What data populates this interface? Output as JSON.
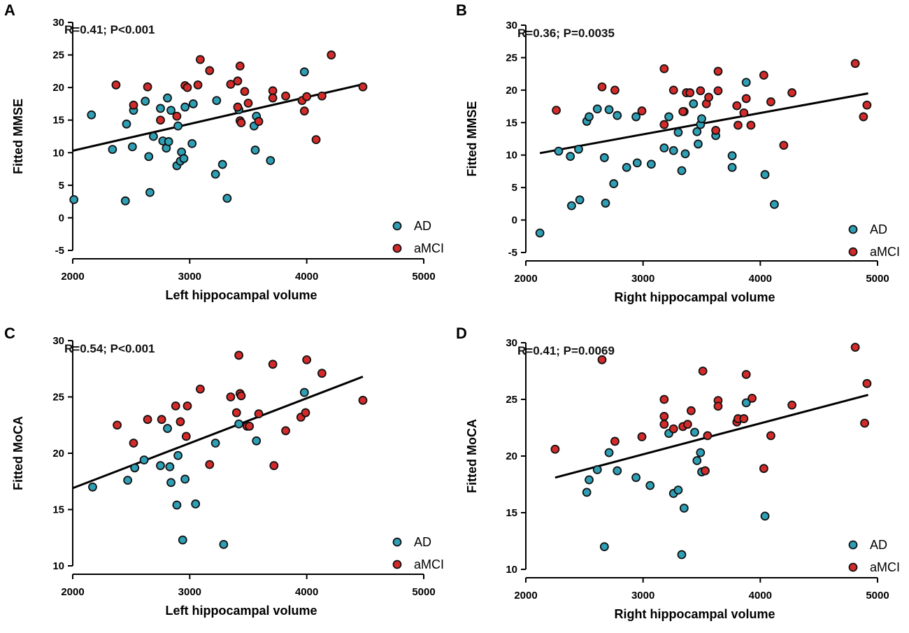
{
  "figure": {
    "colors": {
      "AD": "#2e9fb5",
      "aMCI": "#d42a2a",
      "marker_edge": "#111111",
      "line": "#000000"
    }
  },
  "chart_data": [
    {
      "panel": "A",
      "type": "scatter",
      "annotation": "R=0.41; P<0.001",
      "xlabel": "Left hippocampal volume",
      "ylabel": "Fitted MMSE",
      "xlim": [
        2000,
        5000
      ],
      "ylim": [
        -5,
        30
      ],
      "xticks": [
        2000,
        3000,
        4000,
        5000
      ],
      "yticks": [
        -5,
        0,
        5,
        10,
        15,
        20,
        25,
        30
      ],
      "legend": [
        "AD",
        "aMCI"
      ],
      "legend_position": "bottom-right",
      "fit_line": {
        "x": [
          2000,
          4480
        ],
        "y": [
          10.3,
          20.5
        ]
      },
      "series": [
        {
          "name": "AD",
          "points": [
            [
              2010,
              2.8
            ],
            [
              2160,
              15.8
            ],
            [
              2340,
              10.5
            ],
            [
              2450,
              2.6
            ],
            [
              2460,
              14.4
            ],
            [
              2510,
              10.9
            ],
            [
              2520,
              16.5
            ],
            [
              2620,
              17.9
            ],
            [
              2650,
              9.4
            ],
            [
              2660,
              3.9
            ],
            [
              2690,
              12.5
            ],
            [
              2750,
              16.8
            ],
            [
              2770,
              11.8
            ],
            [
              2800,
              10.7
            ],
            [
              2810,
              18.4
            ],
            [
              2820,
              11.7
            ],
            [
              2840,
              16.5
            ],
            [
              2890,
              8.0
            ],
            [
              2900,
              14.1
            ],
            [
              2920,
              8.7
            ],
            [
              2930,
              10.1
            ],
            [
              2950,
              9.1
            ],
            [
              2960,
              17.0
            ],
            [
              3020,
              11.4
            ],
            [
              3030,
              17.5
            ],
            [
              3220,
              6.7
            ],
            [
              3230,
              18.0
            ],
            [
              3280,
              8.2
            ],
            [
              3320,
              3.0
            ],
            [
              3420,
              16.6
            ],
            [
              3550,
              14.1
            ],
            [
              3560,
              10.4
            ],
            [
              3570,
              15.6
            ],
            [
              3690,
              8.8
            ],
            [
              3980,
              22.4
            ]
          ]
        },
        {
          "name": "aMCI",
          "points": [
            [
              2370,
              20.4
            ],
            [
              2520,
              17.3
            ],
            [
              2640,
              20.1
            ],
            [
              2750,
              15.0
            ],
            [
              2890,
              15.6
            ],
            [
              2960,
              20.3
            ],
            [
              2980,
              20.0
            ],
            [
              3070,
              20.4
            ],
            [
              3090,
              24.3
            ],
            [
              3170,
              22.6
            ],
            [
              3350,
              20.5
            ],
            [
              3410,
              21.0
            ],
            [
              3430,
              23.3
            ],
            [
              3410,
              17.0
            ],
            [
              3430,
              14.9
            ],
            [
              3440,
              14.6
            ],
            [
              3470,
              19.4
            ],
            [
              3500,
              17.6
            ],
            [
              3590,
              14.8
            ],
            [
              3710,
              19.5
            ],
            [
              3710,
              18.4
            ],
            [
              3820,
              18.7
            ],
            [
              3960,
              18.0
            ],
            [
              3980,
              16.4
            ],
            [
              4000,
              18.6
            ],
            [
              4080,
              12.0
            ],
            [
              4130,
              18.7
            ],
            [
              4210,
              25.0
            ],
            [
              4480,
              20.1
            ]
          ]
        }
      ]
    },
    {
      "panel": "B",
      "type": "scatter",
      "annotation": "R=0.36; P=0.0035",
      "xlabel": "Right hippocampal volume",
      "ylabel": "Fitted MMSE",
      "xlim": [
        2000,
        5000
      ],
      "ylim": [
        -5,
        30
      ],
      "xticks": [
        2000,
        3000,
        4000,
        5000
      ],
      "yticks": [
        -5,
        0,
        5,
        10,
        15,
        20,
        25,
        30
      ],
      "legend": [
        "AD",
        "aMCI"
      ],
      "legend_position": "bottom-right",
      "fit_line": {
        "x": [
          2120,
          4920
        ],
        "y": [
          10.3,
          19.5
        ]
      },
      "series": [
        {
          "name": "AD",
          "points": [
            [
              2120,
              -2.0
            ],
            [
              2280,
              10.6
            ],
            [
              2380,
              9.8
            ],
            [
              2390,
              2.2
            ],
            [
              2450,
              10.9
            ],
            [
              2460,
              3.1
            ],
            [
              2520,
              15.2
            ],
            [
              2540,
              15.9
            ],
            [
              2610,
              17.1
            ],
            [
              2670,
              9.6
            ],
            [
              2680,
              2.6
            ],
            [
              2710,
              17.0
            ],
            [
              2750,
              5.6
            ],
            [
              2780,
              16.1
            ],
            [
              2860,
              8.1
            ],
            [
              2940,
              15.9
            ],
            [
              2950,
              8.8
            ],
            [
              3070,
              8.6
            ],
            [
              3180,
              11.1
            ],
            [
              3220,
              15.9
            ],
            [
              3260,
              10.7
            ],
            [
              3300,
              13.5
            ],
            [
              3330,
              7.6
            ],
            [
              3350,
              16.7
            ],
            [
              3360,
              10.2
            ],
            [
              3430,
              17.9
            ],
            [
              3460,
              13.6
            ],
            [
              3470,
              11.7
            ],
            [
              3490,
              14.7
            ],
            [
              3500,
              15.6
            ],
            [
              3620,
              13.0
            ],
            [
              3760,
              9.9
            ],
            [
              3760,
              8.1
            ],
            [
              3880,
              21.2
            ],
            [
              4040,
              7.0
            ],
            [
              4120,
              2.4
            ]
          ]
        },
        {
          "name": "aMCI",
          "points": [
            [
              2260,
              16.9
            ],
            [
              2650,
              20.5
            ],
            [
              2760,
              20.0
            ],
            [
              2990,
              16.8
            ],
            [
              3180,
              23.3
            ],
            [
              3180,
              14.7
            ],
            [
              3260,
              20.0
            ],
            [
              3340,
              16.7
            ],
            [
              3370,
              19.6
            ],
            [
              3400,
              19.6
            ],
            [
              3490,
              19.9
            ],
            [
              3540,
              17.9
            ],
            [
              3560,
              18.9
            ],
            [
              3620,
              13.8
            ],
            [
              3640,
              19.9
            ],
            [
              3640,
              22.9
            ],
            [
              3800,
              17.6
            ],
            [
              3810,
              14.6
            ],
            [
              3860,
              16.5
            ],
            [
              3880,
              18.7
            ],
            [
              3920,
              14.6
            ],
            [
              4030,
              22.3
            ],
            [
              4090,
              18.2
            ],
            [
              4200,
              11.5
            ],
            [
              4270,
              19.6
            ],
            [
              4810,
              24.1
            ],
            [
              4880,
              15.9
            ],
            [
              4910,
              17.7
            ]
          ]
        }
      ]
    },
    {
      "panel": "C",
      "type": "scatter",
      "annotation": "R=0.54; P<0.001",
      "xlabel": "Left hippocampal volume",
      "ylabel": "Fitted MoCA",
      "xlim": [
        2000,
        5000
      ],
      "ylim": [
        10,
        30
      ],
      "xticks": [
        2000,
        3000,
        4000,
        5000
      ],
      "yticks": [
        10,
        15,
        20,
        25,
        30
      ],
      "legend": [
        "AD",
        "aMCI"
      ],
      "legend_position": "bottom-right",
      "fit_line": {
        "x": [
          2000,
          4480
        ],
        "y": [
          16.9,
          26.8
        ]
      },
      "series": [
        {
          "name": "AD",
          "points": [
            [
              2170,
              17.0
            ],
            [
              2470,
              17.6
            ],
            [
              2530,
              18.7
            ],
            [
              2610,
              19.4
            ],
            [
              2750,
              18.9
            ],
            [
              2810,
              22.2
            ],
            [
              2830,
              18.8
            ],
            [
              2840,
              17.4
            ],
            [
              2890,
              15.4
            ],
            [
              2900,
              19.8
            ],
            [
              2940,
              12.3
            ],
            [
              2960,
              17.7
            ],
            [
              3050,
              15.5
            ],
            [
              3220,
              20.9
            ],
            [
              3290,
              11.9
            ],
            [
              3420,
              22.6
            ],
            [
              3570,
              21.1
            ],
            [
              3980,
              25.4
            ]
          ]
        },
        {
          "name": "aMCI",
          "points": [
            [
              2380,
              22.5
            ],
            [
              2520,
              20.9
            ],
            [
              2640,
              23.0
            ],
            [
              2760,
              23.0
            ],
            [
              2880,
              24.2
            ],
            [
              2920,
              22.8
            ],
            [
              2970,
              21.5
            ],
            [
              2980,
              24.2
            ],
            [
              3090,
              25.7
            ],
            [
              3170,
              19.0
            ],
            [
              3350,
              25.0
            ],
            [
              3400,
              23.6
            ],
            [
              3420,
              28.7
            ],
            [
              3430,
              25.3
            ],
            [
              3440,
              25.1
            ],
            [
              3490,
              22.4
            ],
            [
              3510,
              22.4
            ],
            [
              3590,
              23.5
            ],
            [
              3710,
              27.9
            ],
            [
              3720,
              18.9
            ],
            [
              3820,
              22.0
            ],
            [
              3950,
              23.2
            ],
            [
              3990,
              23.6
            ],
            [
              4000,
              28.3
            ],
            [
              4130,
              27.1
            ],
            [
              4480,
              24.7
            ]
          ]
        }
      ]
    },
    {
      "panel": "D",
      "type": "scatter",
      "annotation": "R=0.41; P=0.0069",
      "xlabel": "Right hippocampal volume",
      "ylabel": "Fitted MoCA",
      "xlim": [
        2000,
        5000
      ],
      "ylim": [
        10,
        30
      ],
      "xticks": [
        2000,
        3000,
        4000,
        5000
      ],
      "yticks": [
        10,
        15,
        20,
        25,
        30
      ],
      "legend": [
        "AD",
        "aMCI"
      ],
      "legend_position": "bottom-right",
      "fit_line": {
        "x": [
          2250,
          4920
        ],
        "y": [
          18.1,
          25.4
        ]
      },
      "series": [
        {
          "name": "AD",
          "points": [
            [
              2520,
              16.8
            ],
            [
              2540,
              17.9
            ],
            [
              2610,
              18.8
            ],
            [
              2670,
              12.0
            ],
            [
              2710,
              20.3
            ],
            [
              2780,
              18.7
            ],
            [
              2940,
              18.1
            ],
            [
              3060,
              17.4
            ],
            [
              3220,
              22.0
            ],
            [
              3260,
              16.7
            ],
            [
              3300,
              17.0
            ],
            [
              3330,
              11.3
            ],
            [
              3350,
              15.4
            ],
            [
              3440,
              22.1
            ],
            [
              3460,
              19.6
            ],
            [
              3490,
              20.3
            ],
            [
              3500,
              18.6
            ],
            [
              3880,
              24.7
            ],
            [
              4040,
              14.7
            ]
          ]
        },
        {
          "name": "aMCI",
          "points": [
            [
              2250,
              20.6
            ],
            [
              2650,
              28.5
            ],
            [
              2760,
              21.3
            ],
            [
              2990,
              21.7
            ],
            [
              3180,
              25.0
            ],
            [
              3180,
              23.5
            ],
            [
              3180,
              22.8
            ],
            [
              3260,
              22.4
            ],
            [
              3340,
              22.6
            ],
            [
              3380,
              22.8
            ],
            [
              3410,
              24.0
            ],
            [
              3510,
              27.5
            ],
            [
              3530,
              18.7
            ],
            [
              3550,
              21.8
            ],
            [
              3640,
              24.9
            ],
            [
              3640,
              24.4
            ],
            [
              3800,
              23.0
            ],
            [
              3810,
              23.3
            ],
            [
              3860,
              23.3
            ],
            [
              3880,
              27.2
            ],
            [
              3930,
              25.1
            ],
            [
              4030,
              18.9
            ],
            [
              4090,
              21.8
            ],
            [
              4270,
              24.5
            ],
            [
              4810,
              29.6
            ],
            [
              4890,
              22.9
            ],
            [
              4910,
              26.4
            ]
          ]
        }
      ]
    }
  ]
}
